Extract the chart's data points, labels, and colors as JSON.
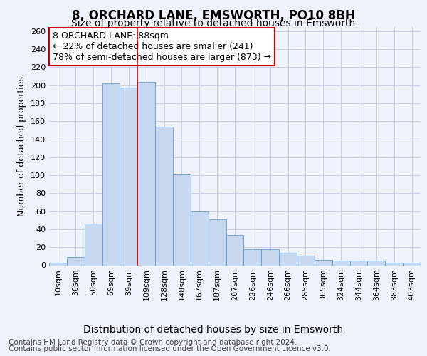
{
  "title": "8, ORCHARD LANE, EMSWORTH, PO10 8BH",
  "subtitle": "Size of property relative to detached houses in Emsworth",
  "xlabel": "Distribution of detached houses by size in Emsworth",
  "ylabel": "Number of detached properties",
  "categories": [
    "10sqm",
    "30sqm",
    "50sqm",
    "69sqm",
    "89sqm",
    "109sqm",
    "128sqm",
    "148sqm",
    "167sqm",
    "187sqm",
    "207sqm",
    "226sqm",
    "246sqm",
    "266sqm",
    "285sqm",
    "305sqm",
    "324sqm",
    "344sqm",
    "364sqm",
    "383sqm",
    "403sqm"
  ],
  "values": [
    3,
    9,
    46,
    202,
    197,
    204,
    154,
    101,
    60,
    51,
    34,
    18,
    18,
    14,
    11,
    6,
    5,
    5,
    5,
    3,
    3
  ],
  "bar_color": "#c5d8f0",
  "bar_edge_color": "#6699cc",
  "highlight_line_color": "#cc0000",
  "highlight_line_index": 4,
  "annotation_line1": "8 ORCHARD LANE: 88sqm",
  "annotation_line2": "← 22% of detached houses are smaller (241)",
  "annotation_line3": "78% of semi-detached houses are larger (873) →",
  "annotation_box_color": "#ffffff",
  "annotation_box_edge_color": "#cc0000",
  "ylim": [
    0,
    265
  ],
  "yticks": [
    0,
    20,
    40,
    60,
    80,
    100,
    120,
    140,
    160,
    180,
    200,
    220,
    240,
    260
  ],
  "footer_line1": "Contains HM Land Registry data © Crown copyright and database right 2024.",
  "footer_line2": "Contains public sector information licensed under the Open Government Licence v3.0.",
  "background_color": "#eef2fb",
  "grid_color": "#c8d0e8",
  "title_fontsize": 12,
  "subtitle_fontsize": 10,
  "xlabel_fontsize": 10,
  "ylabel_fontsize": 9,
  "tick_fontsize": 8,
  "annotation_fontsize": 9,
  "footer_fontsize": 7.5
}
